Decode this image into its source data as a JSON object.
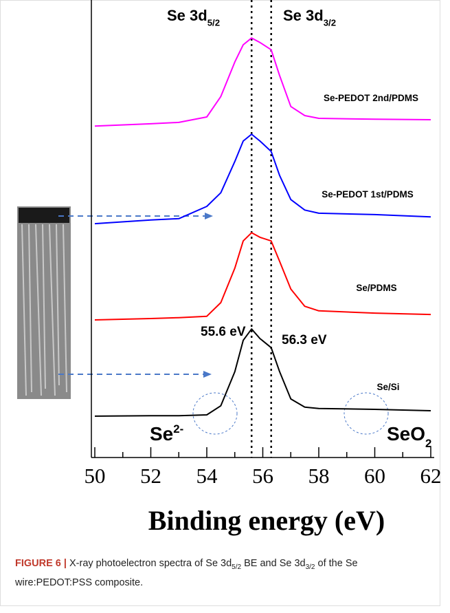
{
  "chart_data": {
    "type": "line",
    "x_label": "Binding energy (eV)",
    "xlim": [
      50,
      62
    ],
    "xticks": [
      50,
      52,
      54,
      56,
      58,
      60,
      62
    ],
    "minor_xticks": [
      51,
      53,
      55,
      57,
      59,
      61
    ],
    "ylim": [
      0,
      100
    ],
    "x": [
      50,
      52,
      53,
      54,
      54.5,
      55,
      55.3,
      55.6,
      55.9,
      56.3,
      56.6,
      57,
      57.5,
      58,
      60,
      62
    ],
    "series": [
      {
        "name": "Se/Si",
        "color": "#000000",
        "values": [
          9.1,
          9.2,
          9.2,
          9.4,
          11.4,
          18.9,
          25.8,
          28.3,
          26.2,
          24.2,
          18.9,
          12.9,
          11.1,
          10.8,
          10.6,
          10.3
        ]
      },
      {
        "name": "Se/PDMS",
        "color": "#ff0000",
        "values": [
          30.3,
          30.6,
          30.8,
          31.1,
          34.1,
          41.7,
          47.7,
          49.5,
          48.5,
          47.7,
          43.2,
          37.1,
          33.3,
          32.3,
          31.8,
          31.5
        ]
      },
      {
        "name": "Se-PEDOT 1st/PDMS",
        "color": "#0000ff",
        "values": [
          51.5,
          52.3,
          52.6,
          55.3,
          58.3,
          65.2,
          69.7,
          71.2,
          69.7,
          67.4,
          62.1,
          56.8,
          54.5,
          53.8,
          53.5,
          53.0
        ]
      },
      {
        "name": "Se-PEDOT 2nd/PDMS",
        "color": "#ff00ff",
        "values": [
          73.0,
          73.5,
          73.8,
          75.0,
          79.5,
          87.1,
          90.9,
          92.4,
          91.4,
          89.8,
          84.1,
          77.3,
          75.3,
          74.7,
          74.5,
          74.4
        ]
      }
    ],
    "reference_lines": [
      55.6,
      56.3
    ],
    "annotations": [
      {
        "text": "Se 3d",
        "sub": "5/2"
      },
      {
        "text": "Se 3d",
        "sub": "3/2"
      },
      {
        "text": "55.6 eV"
      },
      {
        "text": "56.3 eV"
      },
      {
        "text": "Se",
        "sup": "2-"
      },
      {
        "text": "SeO",
        "sub": "2"
      }
    ]
  },
  "caption": {
    "label": "FIGURE 6 |",
    "parts": [
      "X-ray photoelectron spectra of Se 3d",
      "5/2",
      " BE and Se 3d",
      "3/2",
      " of the Se wire:PEDOT:PSS composite."
    ]
  }
}
